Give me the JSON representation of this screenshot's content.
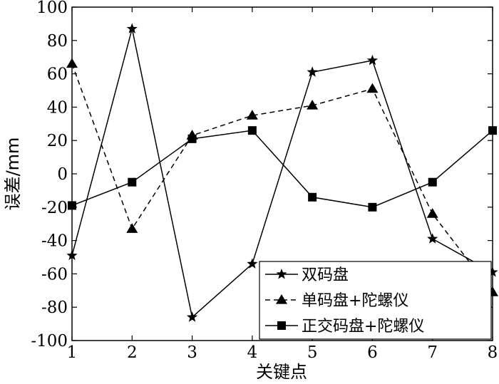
{
  "chart_data": {
    "type": "line",
    "x": [
      1,
      2,
      3,
      4,
      5,
      6,
      7,
      8
    ],
    "xlim": [
      1,
      8
    ],
    "ylim": [
      -100,
      100
    ],
    "xticks": [
      1,
      2,
      3,
      4,
      5,
      6,
      7,
      8
    ],
    "yticks": [
      -100,
      -80,
      -60,
      -40,
      -20,
      0,
      20,
      40,
      60,
      80,
      100
    ],
    "xlabel": "关键点",
    "ylabel": "误差/mm",
    "grid": false,
    "legend_position": "bottom-right",
    "series": [
      {
        "name": "双码盘",
        "marker": "star",
        "line_style": "solid",
        "color": "#000000",
        "values": [
          -49,
          87,
          -86,
          -54,
          61,
          68,
          -39,
          -59
        ]
      },
      {
        "name": "单码盘+陀螺仪",
        "marker": "triangle",
        "line_style": "dashed",
        "color": "#000000",
        "values": [
          66,
          -33,
          23,
          35,
          41,
          51,
          -24,
          -71
        ]
      },
      {
        "name": "正交码盘+陀螺仪",
        "marker": "square",
        "line_style": "solid",
        "color": "#000000",
        "values": [
          -19,
          -5,
          21,
          26,
          -14,
          -20,
          -5,
          26
        ]
      }
    ]
  }
}
